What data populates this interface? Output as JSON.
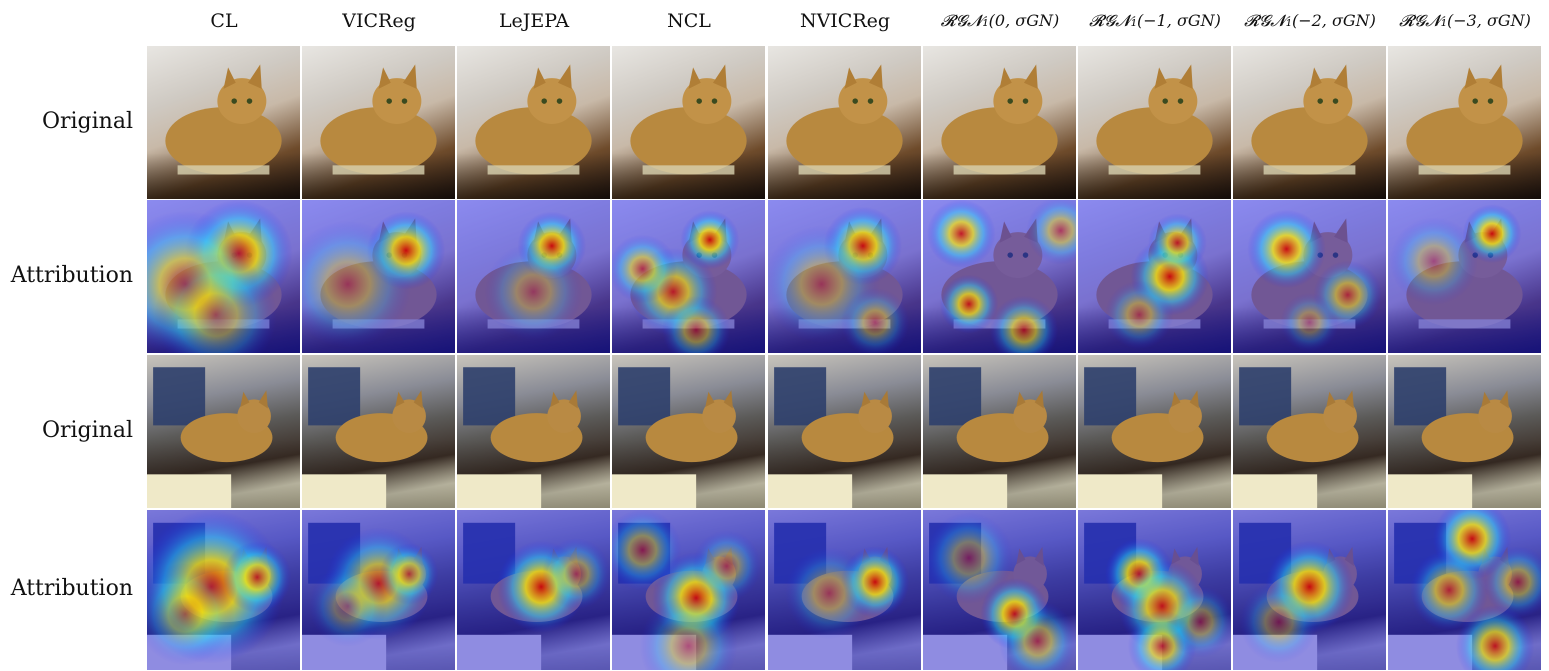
{
  "figure": {
    "columns": [
      {
        "id": "cl",
        "label": "CL",
        "math": false
      },
      {
        "id": "vicreg",
        "label": "VICReg",
        "math": false
      },
      {
        "id": "lejepa",
        "label": "LeJEPA",
        "math": false
      },
      {
        "id": "ncl",
        "label": "NCL",
        "math": false
      },
      {
        "id": "nvicreg",
        "label": "NVICReg",
        "math": false
      },
      {
        "id": "rgn0",
        "label": "𝓡𝓖𝓝₁(0, σGN)",
        "math": true
      },
      {
        "id": "rgn1",
        "label": "𝓡𝓖𝓝₁(−1, σGN)",
        "math": true
      },
      {
        "id": "rgn2",
        "label": "𝓡𝓖𝓝₁(−2, σGN)",
        "math": true
      },
      {
        "id": "rgn3",
        "label": "𝓡𝓖𝓝₁(−3, σGN)",
        "math": true
      }
    ],
    "rows": [
      {
        "label": "Original",
        "kind": "original",
        "scene": "scene-a"
      },
      {
        "label": "Attribution",
        "kind": "attribution",
        "scene": "scene-a"
      },
      {
        "label": "Original",
        "kind": "original",
        "scene": "scene-b"
      },
      {
        "label": "Attribution",
        "kind": "attribution",
        "scene": "scene-b"
      }
    ],
    "colors": {
      "cat": "#b8893f",
      "heat_low": "#1a1aff",
      "heat_mid": "#ffee00",
      "heat_high": "#d00000"
    }
  }
}
